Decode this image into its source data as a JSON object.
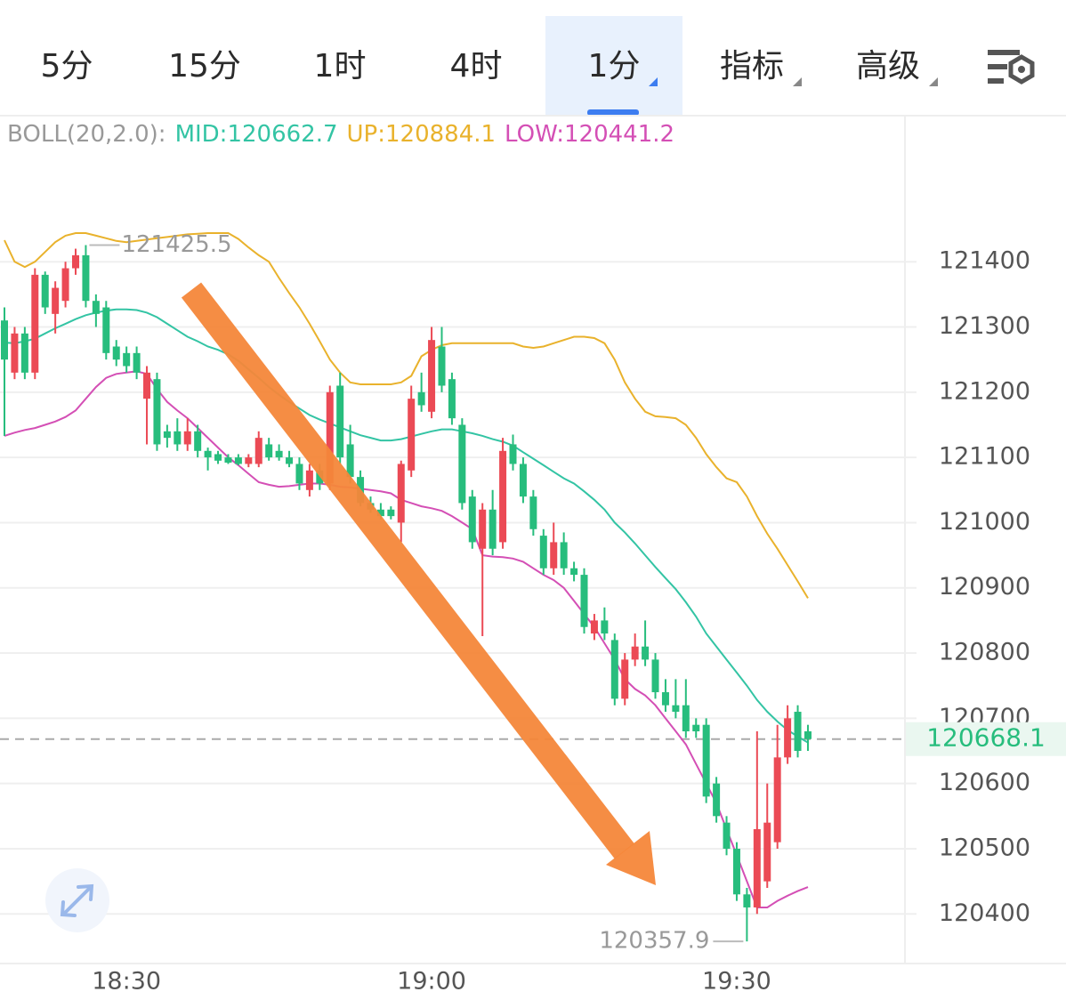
{
  "tabs": [
    "5分",
    "15分",
    "1时",
    "4时",
    "1分",
    "指标",
    "高级"
  ],
  "chart_data": {
    "type": "candlestick",
    "indicator_label": "BOLL(20,2.0):",
    "categories": [
      null,
      null,
      null,
      null,
      null,
      null,
      null,
      null,
      null,
      null,
      null,
      null,
      "18:30",
      null,
      null,
      null,
      null,
      null,
      null,
      null,
      null,
      null,
      null,
      null,
      null,
      null,
      null,
      null,
      null,
      null,
      null,
      null,
      null,
      null,
      null,
      null,
      null,
      null,
      null,
      null,
      null,
      null,
      "19:00",
      null,
      null,
      null,
      null,
      null,
      null,
      null,
      null,
      null,
      null,
      null,
      null,
      null,
      null,
      null,
      null,
      null,
      null,
      null,
      null,
      null,
      null,
      null,
      null,
      null,
      null,
      null,
      null,
      null,
      "19:30",
      null,
      null,
      null,
      null,
      null,
      null,
      null
    ],
    "open": [
      121310,
      121230,
      121290,
      121230,
      121380,
      121320,
      121340,
      121390,
      121410,
      121340,
      121330,
      121270,
      121260,
      121260,
      121190,
      121220,
      121140,
      121140,
      121120,
      121140,
      121110,
      121105,
      121100,
      121100,
      121090,
      121090,
      121120,
      121110,
      121100,
      121090,
      121050,
      121080,
      121060,
      121210,
      121120,
      121070,
      121030,
      121020,
      121020,
      121000,
      121080,
      121200,
      121170,
      121270,
      121220,
      121150,
      121040,
      120960,
      121020,
      120970,
      121120,
      121090,
      121040,
      120980,
      120930,
      120970,
      120930,
      120920,
      120830,
      120850,
      120820,
      120730,
      120790,
      120810,
      120790,
      120740,
      120720,
      120720,
      120690,
      120690,
      120600,
      120540,
      120500,
      120430,
      120410,
      120450,
      120510,
      120640,
      120710,
      120680
    ],
    "high": [
      121330,
      121300,
      121300,
      121390,
      121385,
      121370,
      121400,
      121420,
      121425.5,
      121350,
      121340,
      121280,
      121270,
      121270,
      121240,
      121230,
      121150,
      121160,
      121160,
      121150,
      121115,
      121110,
      121105,
      121105,
      121105,
      121140,
      121130,
      121120,
      121110,
      121100,
      121090,
      121090,
      121210,
      121230,
      121150,
      121080,
      121040,
      121030,
      121025,
      121095,
      121210,
      121230,
      121300,
      121300,
      121230,
      121160,
      121050,
      121030,
      121050,
      121130,
      121135,
      121100,
      121050,
      120990,
      121000,
      120985,
      120940,
      120930,
      120860,
      120870,
      120830,
      120800,
      120830,
      120850,
      120800,
      120760,
      120760,
      120760,
      120700,
      120700,
      120610,
      120550,
      120510,
      120440,
      120680,
      120600,
      120690,
      120720,
      120720,
      120690
    ],
    "low": [
      121133,
      121220,
      121220,
      121220,
      121320,
      121290,
      121330,
      121380,
      121330,
      121300,
      121250,
      121240,
      121230,
      121220,
      121120,
      121110,
      121115,
      121110,
      121110,
      121100,
      121080,
      121090,
      121090,
      121088,
      121085,
      121085,
      121095,
      121095,
      121085,
      121050,
      121040,
      121050,
      121050,
      121090,
      121060,
      121025,
      121015,
      121005,
      121005,
      120970,
      121070,
      121170,
      121160,
      121200,
      121150,
      121020,
      120960,
      120826,
      120950,
      120960,
      121080,
      121030,
      120980,
      120920,
      120920,
      120920,
      120910,
      120830,
      120820,
      120820,
      120720,
      120720,
      120780,
      120780,
      120730,
      120710,
      120700,
      120670,
      120670,
      120570,
      120540,
      120490,
      120420,
      120357.9,
      120400,
      120440,
      120500,
      120630,
      120640,
      120650
    ],
    "close": [
      121250,
      121290,
      121230,
      121380,
      121330,
      121360,
      121390,
      121410,
      121340,
      121320,
      121260,
      121250,
      121240,
      121230,
      121230,
      121120,
      121130,
      121120,
      121140,
      121110,
      121100,
      121095,
      121092,
      121090,
      121100,
      121130,
      121100,
      121100,
      121090,
      121060,
      121080,
      121060,
      121200,
      121100,
      121070,
      121030,
      121020,
      121010,
      121010,
      121090,
      121190,
      121180,
      121280,
      121210,
      121160,
      121030,
      120970,
      121020,
      120960,
      121110,
      121090,
      121040,
      120990,
      120930,
      120970,
      120930,
      120920,
      120840,
      120850,
      120830,
      120730,
      120790,
      120810,
      120790,
      120740,
      120720,
      120710,
      120680,
      120680,
      120580,
      120550,
      120500,
      120430,
      120410,
      120530,
      120540,
      120640,
      120700,
      120650,
      120668.1
    ],
    "up_color": "#eb4a55",
    "down_color": "#27bd7d",
    "series": [
      {
        "name": "MID:120662.7",
        "color": "#33c4a4",
        "values": [
          121276,
          121275,
          121278,
          121282,
          121290,
          121298,
          121305,
          121312,
          121318,
          121322,
          121325,
          121327,
          121327,
          121326,
          121322,
          121315,
          121305,
          121295,
          121285,
          121278,
          121270,
          121265,
          121258,
          121248,
          121235,
          121222,
          121208,
          121196,
          121185,
          121175,
          121165,
          121158,
          121152,
          121146,
          121140,
          121134,
          121130,
          121126,
          121126,
          121128,
          121132,
          121136,
          121140,
          121143,
          121143,
          121140,
          121137,
          121133,
          121128,
          121124,
          121118,
          121108,
          121098,
          121088,
          121078,
          121068,
          121060,
          121048,
          121035,
          121020,
          121000,
          120985,
          120968,
          120950,
          120932,
          120915,
          120898,
          120878,
          120856,
          120830,
          120810,
          120790,
          120770,
          120750,
          120728,
          120710,
          120695,
          120682,
          120672,
          120662.7
        ]
      },
      {
        "name": "UP:120884.1",
        "color": "#e9b22c",
        "values": [
          121433,
          121400,
          121392,
          121400,
          121415,
          121430,
          121440,
          121444,
          121444,
          121440,
          121436,
          121432,
          121430,
          121432,
          121434,
          121436,
          121438,
          121440,
          121442,
          121443,
          121444,
          121444,
          121444,
          121435,
          121422,
          121410,
          121400,
          121375,
          121352,
          121330,
          121305,
          121278,
          121250,
          121230,
          121215,
          121212,
          121212,
          121212,
          121212,
          121215,
          121225,
          121255,
          121265,
          121272,
          121275,
          121275,
          121275,
          121275,
          121275,
          121275,
          121275,
          121270,
          121268,
          121270,
          121275,
          121280,
          121285,
          121285,
          121283,
          121275,
          121250,
          121215,
          121190,
          121170,
          121163,
          121162,
          121160,
          121150,
          121130,
          121105,
          121085,
          121068,
          121062,
          121040,
          121010,
          120983,
          120960,
          120935,
          120910,
          120884.1
        ]
      },
      {
        "name": "LOW:120441.2",
        "color": "#d44fb5",
        "values": [
          121133,
          121138,
          121142,
          121145,
          121150,
          121155,
          121162,
          121172,
          121190,
          121208,
          121222,
          121228,
          121230,
          121232,
          121228,
          121205,
          121185,
          121172,
          121160,
          121145,
          121130,
          121115,
          121100,
          121088,
          121075,
          121062,
          121058,
          121055,
          121056,
          121058,
          121060,
          121060,
          121058,
          121055,
          121054,
          121052,
          121050,
          121048,
          121045,
          121035,
          121030,
          121025,
          121022,
          121018,
          121010,
          121000,
          120990,
          120950,
          120948,
          120947,
          120945,
          120940,
          120930,
          120920,
          120912,
          120900,
          120880,
          120860,
          120840,
          120815,
          120790,
          120760,
          120745,
          120735,
          120720,
          120700,
          120680,
          120660,
          120630,
          120600,
          120570,
          120530,
          120490,
          120450,
          120410,
          120410,
          120420,
          120428,
          120435,
          120441.2
        ]
      }
    ],
    "ylim": [
      120324,
      121624
    ],
    "yticks": [
      120400,
      120500,
      120600,
      120700,
      120800,
      120900,
      121000,
      121100,
      121200,
      121300,
      121400
    ],
    "grid": true,
    "max_label": 121425.5,
    "min_label": 120357.9,
    "last_price": 120668.1
  }
}
